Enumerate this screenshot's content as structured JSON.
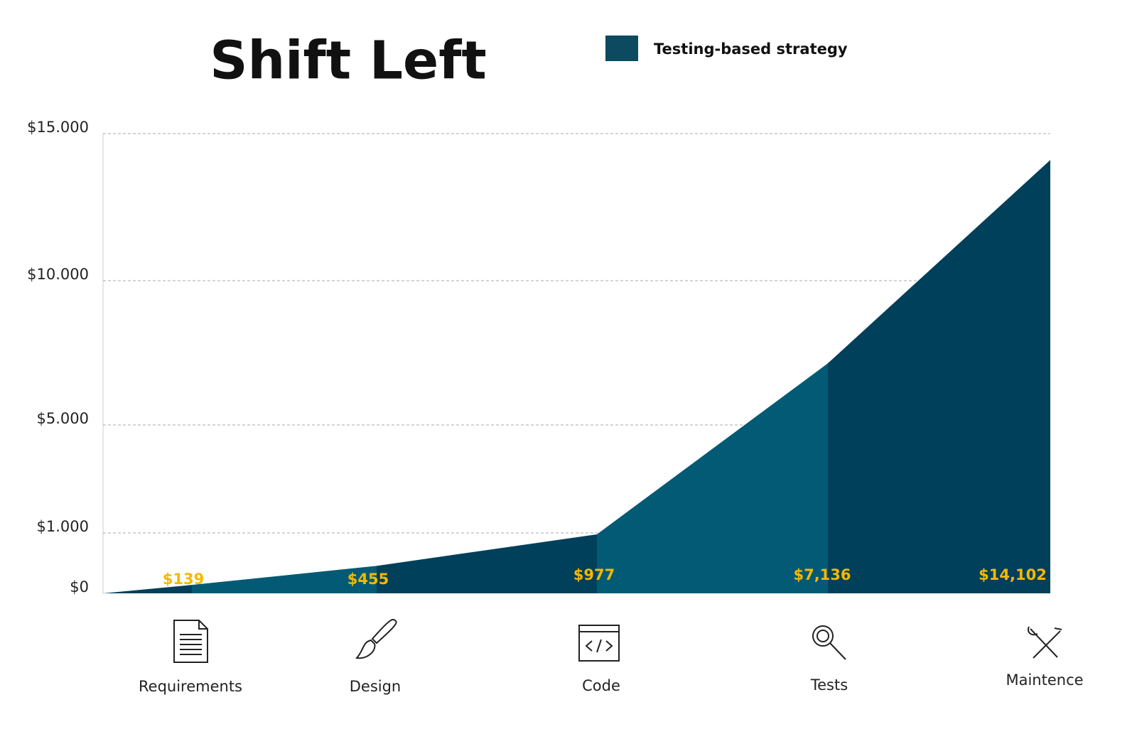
{
  "chart_data": {
    "type": "area",
    "title": "Shift Left",
    "categories": [
      "Requirements",
      "Design",
      "Code",
      "Tests",
      "Maintence"
    ],
    "series": [
      {
        "name": "Testing-based strategy",
        "color": "#0d4a5f",
        "values": [
          139,
          455,
          977,
          7136,
          14102
        ],
        "value_labels": [
          "$139",
          "$455",
          "$977",
          "$7,136",
          "$14,102"
        ]
      }
    ],
    "segment_colors": [
      "#01405a",
      "#035a75"
    ],
    "value_label_color": "#f5b800",
    "ylim": [
      0,
      15000
    ],
    "yticks": [
      {
        "value": 0,
        "label": "$0"
      },
      {
        "value": 1000,
        "label": "$1.000"
      },
      {
        "value": 5000,
        "label": "$5.000"
      },
      {
        "value": 10000,
        "label": "$10.000"
      },
      {
        "value": 15000,
        "label": "$15.000"
      }
    ],
    "grid": true
  }
}
